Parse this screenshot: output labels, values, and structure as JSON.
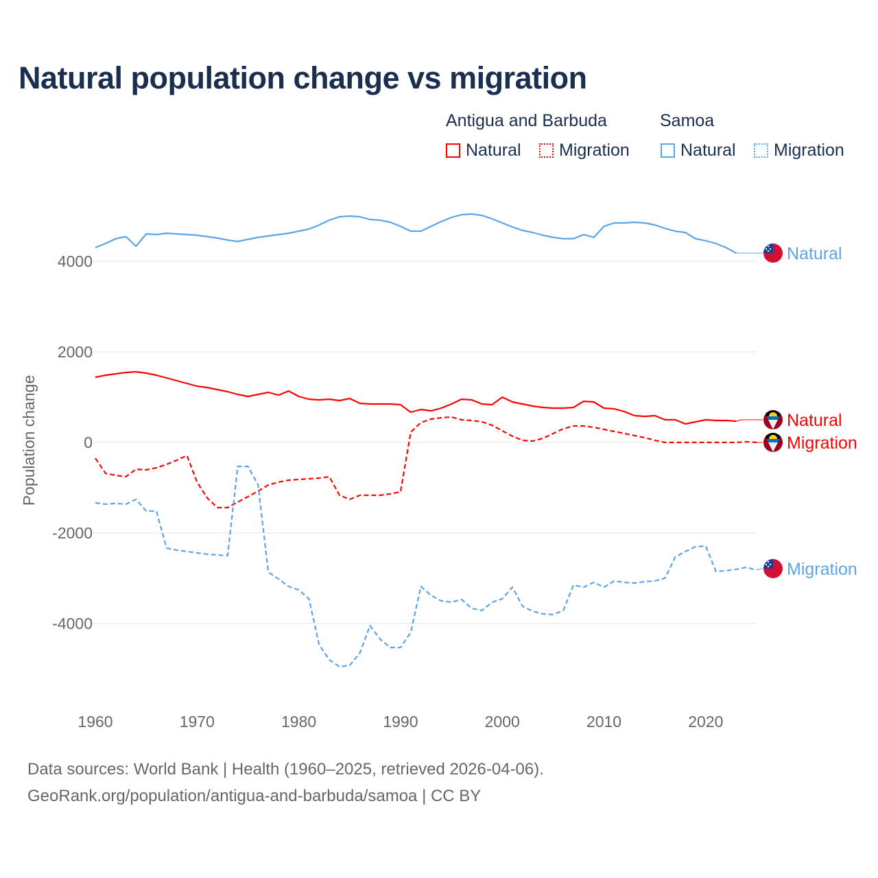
{
  "title": "Natural population change vs migration",
  "legend": {
    "groups": [
      {
        "name": "Antigua and Barbuda",
        "color": "#ff0000",
        "items": [
          "Natural",
          "Migration"
        ]
      },
      {
        "name": "Samoa",
        "color": "#5ba4e8",
        "items": [
          "Natural",
          "Migration"
        ]
      }
    ]
  },
  "footer": {
    "line1": "Data sources: World Bank | Health (1960–2025, retrieved 2026-04-06).",
    "line2": "GeoRank.org/population/antigua-and-barbuda/samoa | CC BY"
  },
  "chart_data": {
    "type": "line",
    "title": "Natural population change vs migration",
    "xlabel": "",
    "ylabel": "Population change",
    "xlim": [
      1960,
      2025
    ],
    "ylim": [
      -5500,
      5200
    ],
    "x_ticks": [
      "1960",
      "1970",
      "1980",
      "1990",
      "2000",
      "2010",
      "2020"
    ],
    "y_ticks": [
      "4000",
      "2000",
      "0",
      "-2000",
      "-4000"
    ],
    "grid": true,
    "series": [
      {
        "name": "Samoa Natural",
        "label": "Natural",
        "country": "Samoa",
        "color": "#5ba4e8",
        "dash": "solid",
        "start": 1960,
        "values": [
          4303,
          4394,
          4500,
          4545,
          4333,
          4606,
          4591,
          4621,
          4606,
          4591,
          4576,
          4545,
          4515,
          4470,
          4439,
          4485,
          4530,
          4561,
          4591,
          4621,
          4667,
          4712,
          4803,
          4909,
          4985,
          5000,
          4985,
          4924,
          4909,
          4864,
          4773,
          4667,
          4667,
          4773,
          4879,
          4970,
          5030,
          5045,
          5015,
          4939,
          4848,
          4758,
          4682,
          4636,
          4576,
          4530,
          4500,
          4500,
          4591,
          4530,
          4773,
          4848,
          4848,
          4864,
          4848,
          4803,
          4727,
          4667,
          4636,
          4500,
          4455,
          4394,
          4303,
          4182
        ]
      },
      {
        "name": "Antigua and Barbuda Natural",
        "label": "Natural",
        "country": "Antigua and Barbuda",
        "color": "#ff0000",
        "dash": "solid",
        "start": 1960,
        "values": [
          1439,
          1485,
          1515,
          1545,
          1561,
          1530,
          1485,
          1424,
          1364,
          1303,
          1242,
          1212,
          1167,
          1121,
          1061,
          1015,
          1061,
          1106,
          1045,
          1136,
          1015,
          955,
          939,
          955,
          924,
          970,
          864,
          848,
          848,
          848,
          833,
          667,
          727,
          697,
          758,
          848,
          955,
          939,
          848,
          833,
          1000,
          894,
          848,
          803,
          773,
          758,
          758,
          773,
          909,
          894,
          758,
          742,
          682,
          591,
          576,
          591,
          500,
          500,
          409,
          455,
          500,
          485,
          485,
          470
        ]
      },
      {
        "name": "Antigua and Barbuda Migration",
        "label": "Migration",
        "country": "Antigua and Barbuda",
        "color": "#ff0000",
        "dash": "dashed",
        "start": 1960,
        "values": [
          -348,
          -682,
          -727,
          -758,
          -591,
          -606,
          -561,
          -485,
          -394,
          -288,
          -879,
          -1227,
          -1439,
          -1439,
          -1318,
          -1197,
          -1076,
          -939,
          -879,
          -833,
          -818,
          -803,
          -788,
          -758,
          -1167,
          -1258,
          -1167,
          -1167,
          -1167,
          -1136,
          -1091,
          227,
          439,
          515,
          545,
          561,
          500,
          485,
          455,
          379,
          258,
          136,
          45,
          30,
          91,
          197,
          303,
          364,
          364,
          333,
          288,
          242,
          197,
          152,
          106,
          45,
          0,
          0,
          0,
          0,
          0,
          0,
          0,
          0,
          15,
          0
        ]
      },
      {
        "name": "Samoa Migration",
        "label": "Migration",
        "country": "Samoa",
        "color": "#5ba4e8",
        "dash": "dashed",
        "start": 1960,
        "values": [
          -1333,
          -1364,
          -1348,
          -1364,
          -1258,
          -1515,
          -1515,
          -2333,
          -2379,
          -2409,
          -2439,
          -2470,
          -2485,
          -2500,
          -530,
          -530,
          -939,
          -2864,
          -3015,
          -3182,
          -3258,
          -3455,
          -4470,
          -4803,
          -4955,
          -4924,
          -4652,
          -4045,
          -4348,
          -4530,
          -4530,
          -4197,
          -3182,
          -3379,
          -3500,
          -3530,
          -3470,
          -3667,
          -3712,
          -3530,
          -3455,
          -3197,
          -3621,
          -3727,
          -3788,
          -3803,
          -3712,
          -3152,
          -3197,
          -3091,
          -3197,
          -3061,
          -3091,
          -3106,
          -3076,
          -3061,
          -3000,
          -2530,
          -2409,
          -2303,
          -2288,
          -2848,
          -2833,
          -2803,
          -2758,
          -2818
        ]
      }
    ]
  }
}
